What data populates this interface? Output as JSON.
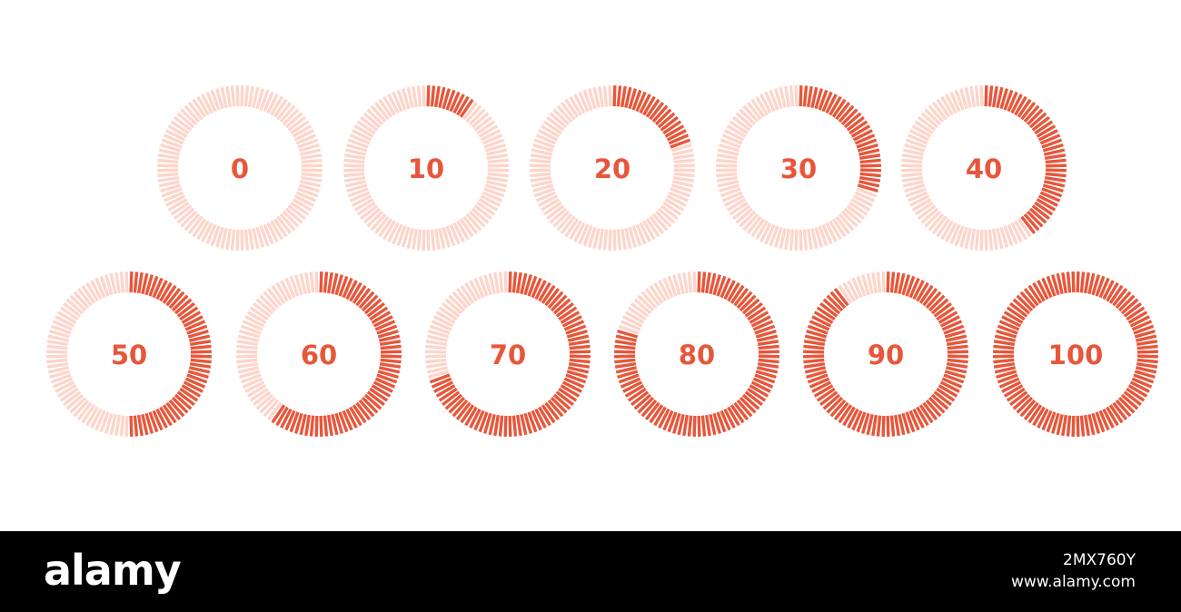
{
  "gauges": {
    "values": [
      0,
      10,
      20,
      30,
      40,
      50,
      60,
      70,
      80,
      90,
      100
    ],
    "scale": [
      0,
      100
    ],
    "segments": 100,
    "active_color": "#e8563a",
    "track_color": "#fcd5cb"
  },
  "watermark": {
    "brand": "alamy",
    "id": "2MX760Y",
    "site": "www.alamy.com"
  }
}
